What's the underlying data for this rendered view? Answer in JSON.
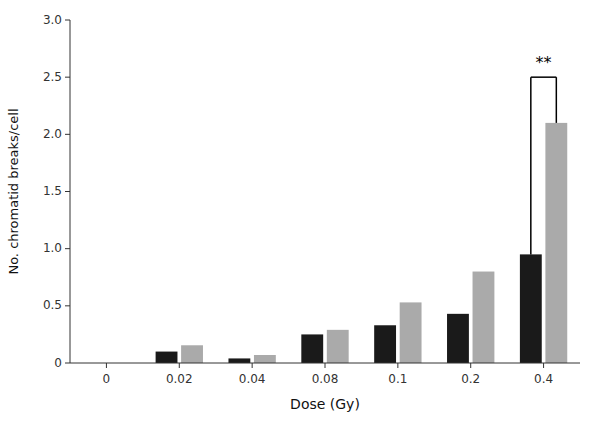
{
  "chart_data": {
    "type": "bar",
    "xlabel": "Dose (Gy)",
    "ylabel": "No. chromatid breaks/cell",
    "categories": [
      "0",
      "0.02",
      "0.04",
      "0.08",
      "0.1",
      "0.2",
      "0.4"
    ],
    "series": [
      {
        "color": "#1a1a1a",
        "values": [
          0.0,
          0.1,
          0.04,
          0.25,
          0.33,
          0.43,
          0.95
        ]
      },
      {
        "color": "#aaaaaa",
        "values": [
          0.0,
          0.155,
          0.07,
          0.29,
          0.53,
          0.8,
          2.1
        ]
      }
    ],
    "ylim": [
      0,
      3.0
    ],
    "yticks": [
      0,
      0.5,
      {
        "value": 1.0,
        "label": "1.0"
      },
      1.5,
      {
        "value": 2.0,
        "label": "2.0"
      },
      2.5,
      {
        "value": 3.0,
        "label": "3.0"
      }
    ],
    "grid": false,
    "annotations": [
      {
        "text": "**",
        "x": "0.4",
        "y": 2.58,
        "bracket": 2.5
      }
    ]
  }
}
